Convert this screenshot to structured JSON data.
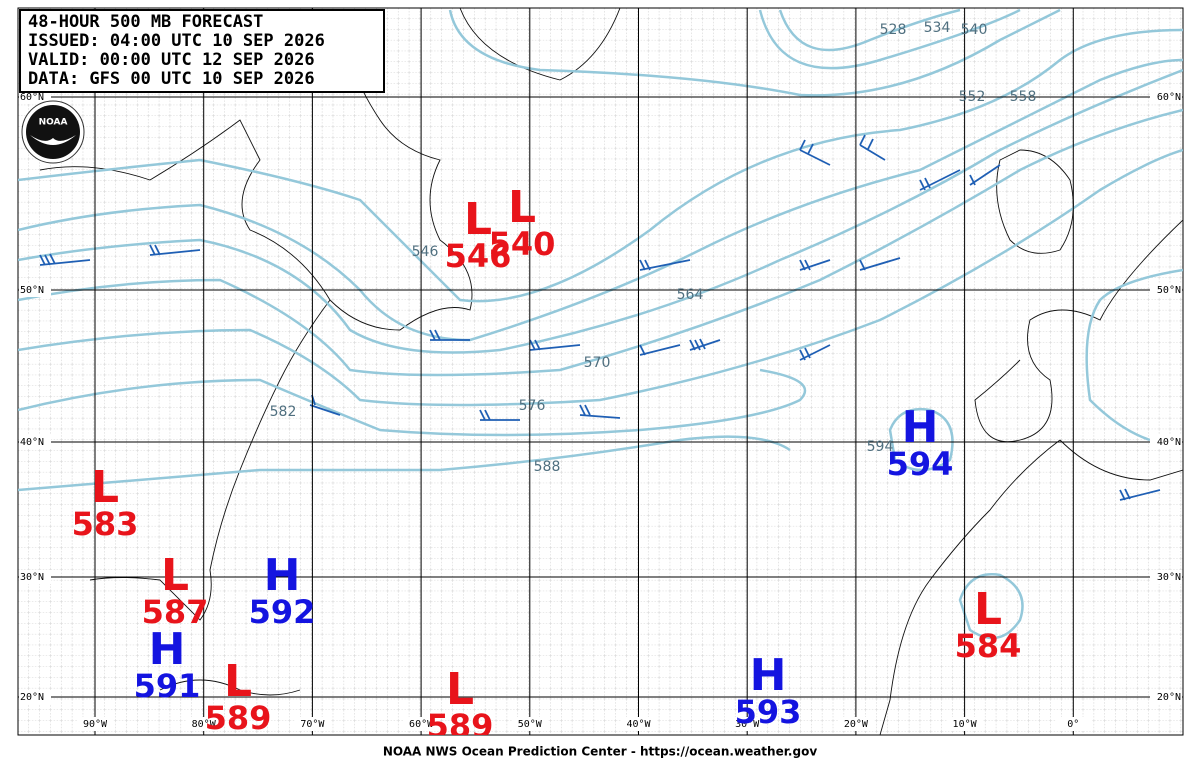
{
  "header": {
    "lines": [
      "48-HOUR 500 MB FORECAST",
      "ISSUED: 04:00 UTC 10 SEP 2026",
      "VALID:  00:00 UTC 12 SEP 2026",
      "DATA:  GFS 00 UTC 10 SEP 2026"
    ]
  },
  "logo_text": "NOAA",
  "latitudes": [
    "60°N",
    "50°N",
    "40°N",
    "30°N",
    "20°N"
  ],
  "longitudes": [
    "90°W",
    "80°W",
    "70°W",
    "60°W",
    "50°W",
    "40°W",
    "30°W",
    "20°W",
    "10°W",
    "0°"
  ],
  "centers": [
    {
      "type": "L",
      "value": 583
    },
    {
      "type": "L",
      "value": 587
    },
    {
      "type": "H",
      "value": 592
    },
    {
      "type": "H",
      "value": 591
    },
    {
      "type": "L",
      "value": 589
    },
    {
      "type": "L",
      "value": 589
    },
    {
      "type": "H",
      "value": 593
    },
    {
      "type": "L",
      "value": 584
    },
    {
      "type": "H",
      "value": 594
    },
    {
      "type": "L",
      "value": 546
    },
    {
      "type": "L",
      "value": 540
    }
  ],
  "contour_labels": [
    528,
    534,
    540,
    546,
    552,
    558,
    564,
    570,
    576,
    582,
    588,
    594
  ],
  "footer": "NOAA NWS Ocean Prediction Center - https://ocean.weather.gov"
}
